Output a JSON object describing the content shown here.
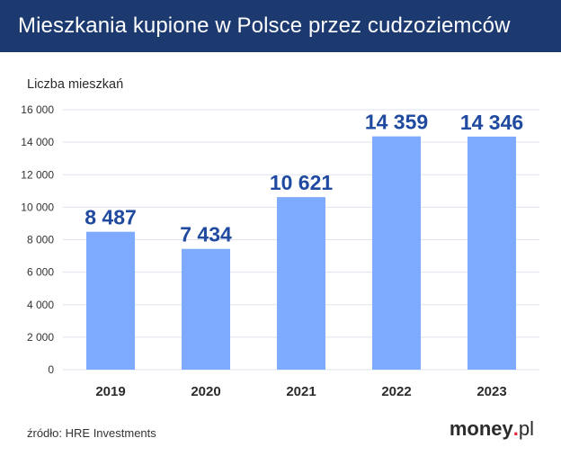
{
  "header": {
    "title": "Mieszkania kupione w Polsce przez cudzoziemców"
  },
  "unit_label": "Liczba mieszkań",
  "source": "źródło: HRE Investments",
  "logo": {
    "name": "money",
    "dot": ".",
    "tld": "pl"
  },
  "colors": {
    "header_bg": "#1c3a70",
    "bar": "#7eaaff",
    "value_label": "#1f4aa0",
    "grid": "#dde3ee"
  },
  "chart_data": {
    "type": "bar",
    "title": "Mieszkania kupione w Polsce przez cudzoziemców",
    "ylabel": "Liczba mieszkań",
    "xlabel": "",
    "categories": [
      "2019",
      "2020",
      "2021",
      "2022",
      "2023"
    ],
    "values": [
      8487,
      7434,
      10621,
      14359,
      14346
    ],
    "value_labels": [
      "8 487",
      "7 434",
      "10 621",
      "14 359",
      "14 346"
    ],
    "ylim": [
      0,
      16000
    ],
    "yticks": [
      0,
      2000,
      4000,
      6000,
      8000,
      10000,
      12000,
      14000,
      16000
    ],
    "ytick_labels": [
      "0",
      "2 000",
      "4 000",
      "6 000",
      "8 000",
      "10 000",
      "12 000",
      "14 000",
      "16 000"
    ],
    "grid": true,
    "legend": "none"
  }
}
